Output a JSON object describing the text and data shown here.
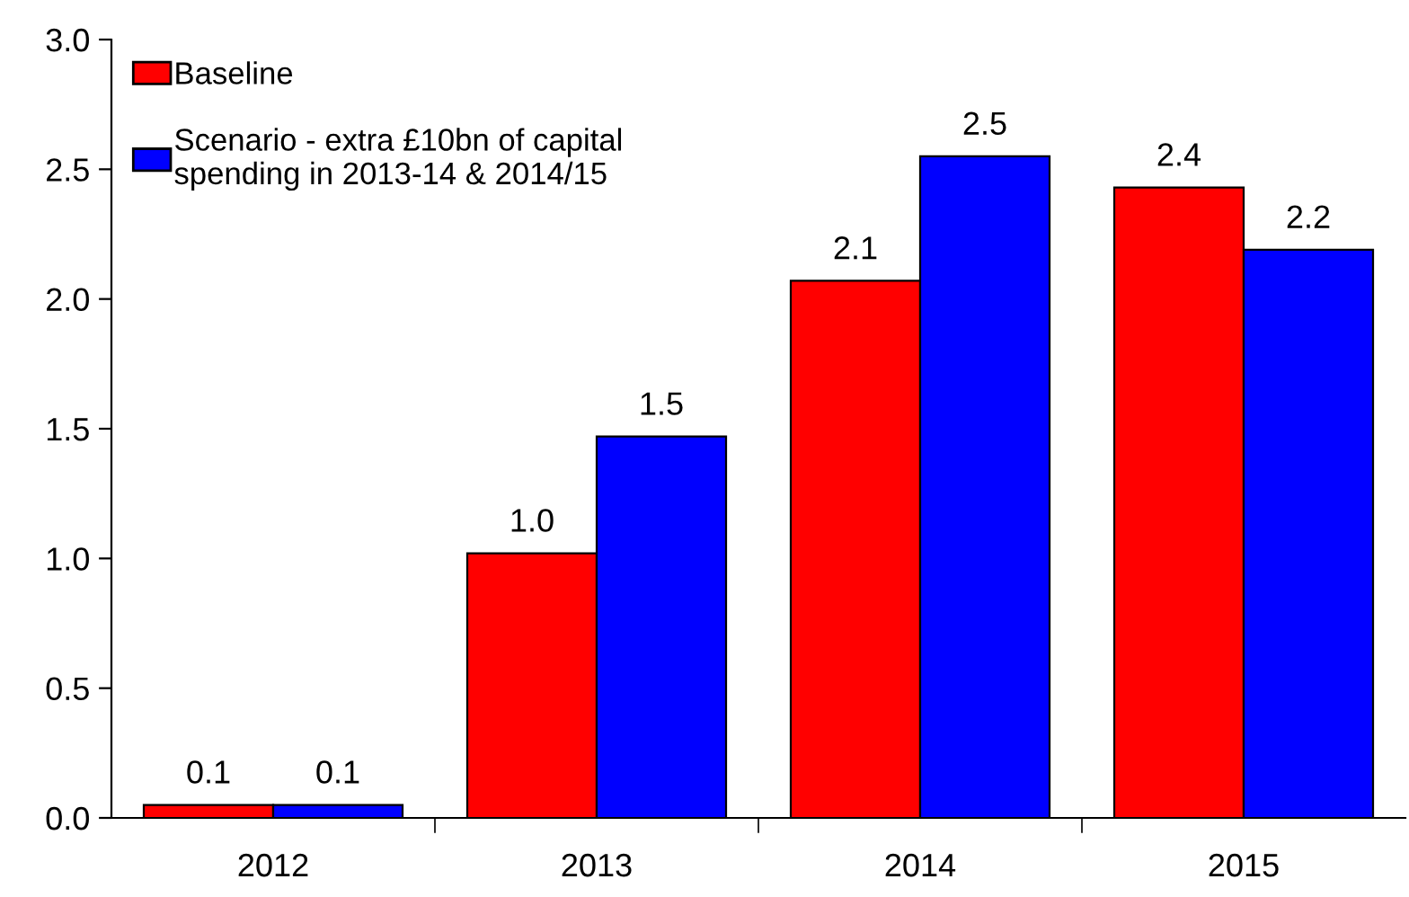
{
  "chart_data": {
    "type": "bar",
    "categories": [
      "2012",
      "2013",
      "2014",
      "2015"
    ],
    "series": [
      {
        "name": "Baseline",
        "color": "#ff0000",
        "values": [
          0.05,
          1.02,
          2.07,
          2.43
        ],
        "value_labels": [
          "0.1",
          "1.0",
          "2.1",
          "2.4"
        ]
      },
      {
        "name": "Scenario - extra £10bn of capital\nspending in 2013-14 & 2014/15",
        "color": "#0000ff",
        "values": [
          0.05,
          1.47,
          2.55,
          2.19
        ],
        "value_labels": [
          "0.1",
          "1.5",
          "2.5",
          "2.2"
        ]
      }
    ],
    "ylim": [
      0,
      3.0
    ],
    "yticks": [
      {
        "value": 0,
        "label": "0.0"
      },
      {
        "value": 0.5,
        "label": "0.5"
      },
      {
        "value": 1.0,
        "label": "1.0"
      },
      {
        "value": 1.5,
        "label": "1.5"
      },
      {
        "value": 2.0,
        "label": "2.0"
      },
      {
        "value": 2.5,
        "label": "2.5"
      },
      {
        "value": 3.0,
        "label": "3.0"
      }
    ],
    "grid": false,
    "legend": "top left"
  }
}
